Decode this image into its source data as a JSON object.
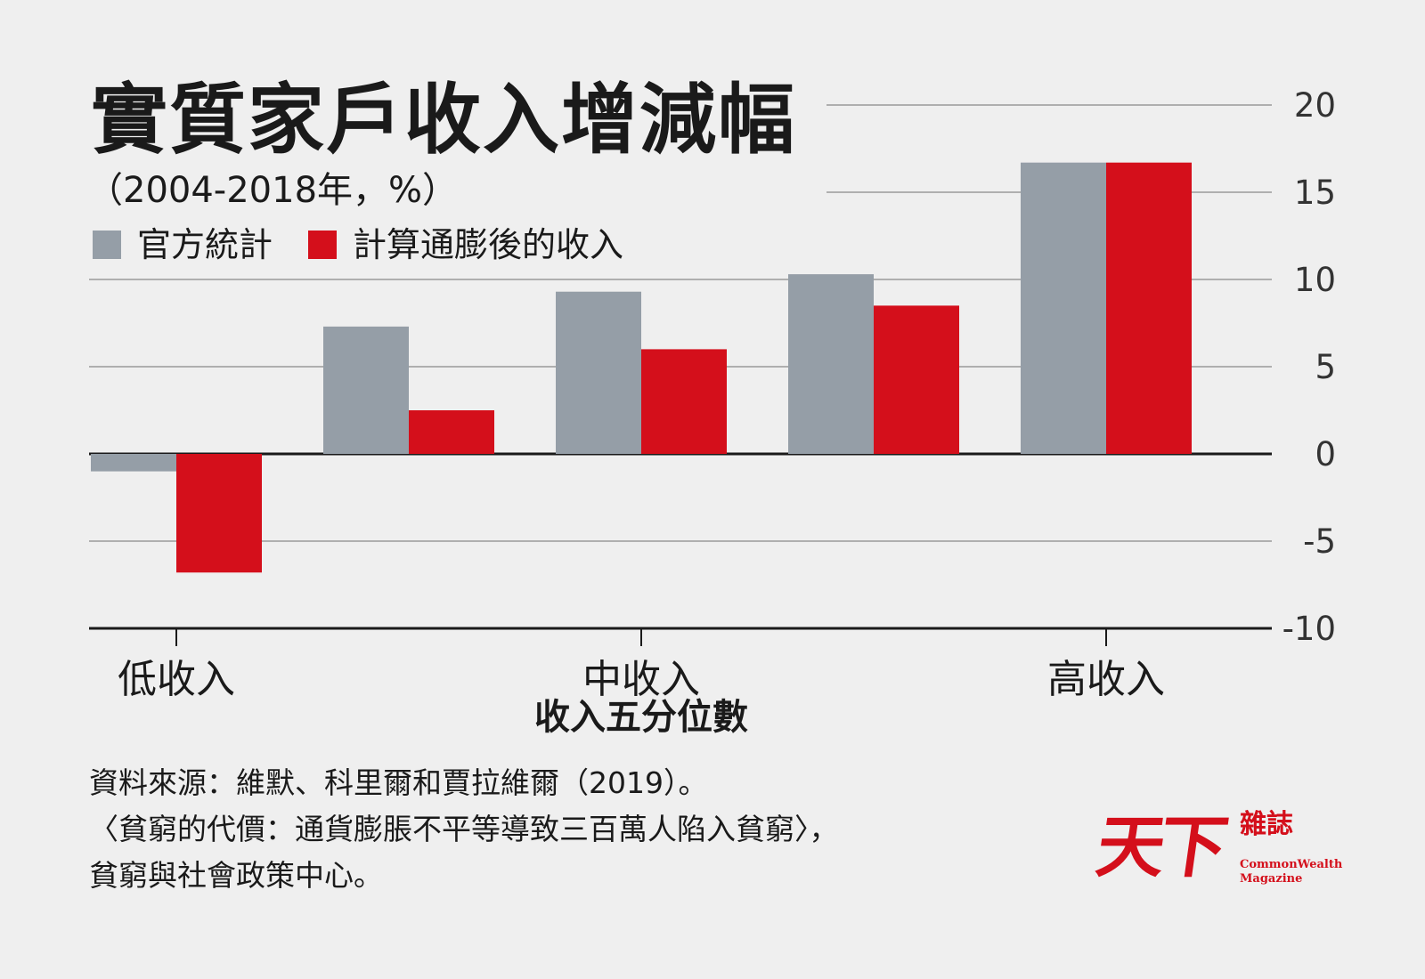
{
  "header": {
    "title": "實質家戶收入增減幅",
    "subtitle": "（2004-2018年，%）"
  },
  "legend": [
    {
      "label": "官方統計",
      "color": "#959ea7"
    },
    {
      "label": "計算通膨後的收入",
      "color": "#d40f1b"
    }
  ],
  "chart_data": {
    "type": "bar",
    "categories": [
      "低收入",
      "",
      "中收入",
      "",
      "高收入"
    ],
    "series": [
      {
        "name": "官方統計",
        "values": [
          -1.0,
          7.3,
          9.3,
          10.3,
          16.7
        ],
        "color": "#959ea7"
      },
      {
        "name": "計算通膨後的收入",
        "values": [
          -6.8,
          2.5,
          6.0,
          8.5,
          16.7
        ],
        "color": "#d40f1b"
      }
    ],
    "xlabel": "收入五分位數",
    "ylabel": "",
    "ylim": [
      -10,
      20
    ],
    "yticks": [
      20,
      15,
      10,
      5,
      0,
      -5,
      -10
    ],
    "ytick_labels": [
      "20",
      "15",
      "10",
      "5",
      "0",
      "-5",
      "-10"
    ],
    "grid": true,
    "legend_position": "top-left"
  },
  "footer": {
    "source_lines": [
      "資料來源：維默、科里爾和賈拉維爾（2019）。",
      "〈貧窮的代價：通貨膨脹不平等導致三百萬人陷入貧窮〉，",
      "貧窮與社會政策中心。"
    ]
  },
  "logo": {
    "mark": "天下",
    "cn": "雜誌",
    "en_line1": "CommonWealth",
    "en_line2": "Magazine",
    "color": "#d40f1b"
  }
}
